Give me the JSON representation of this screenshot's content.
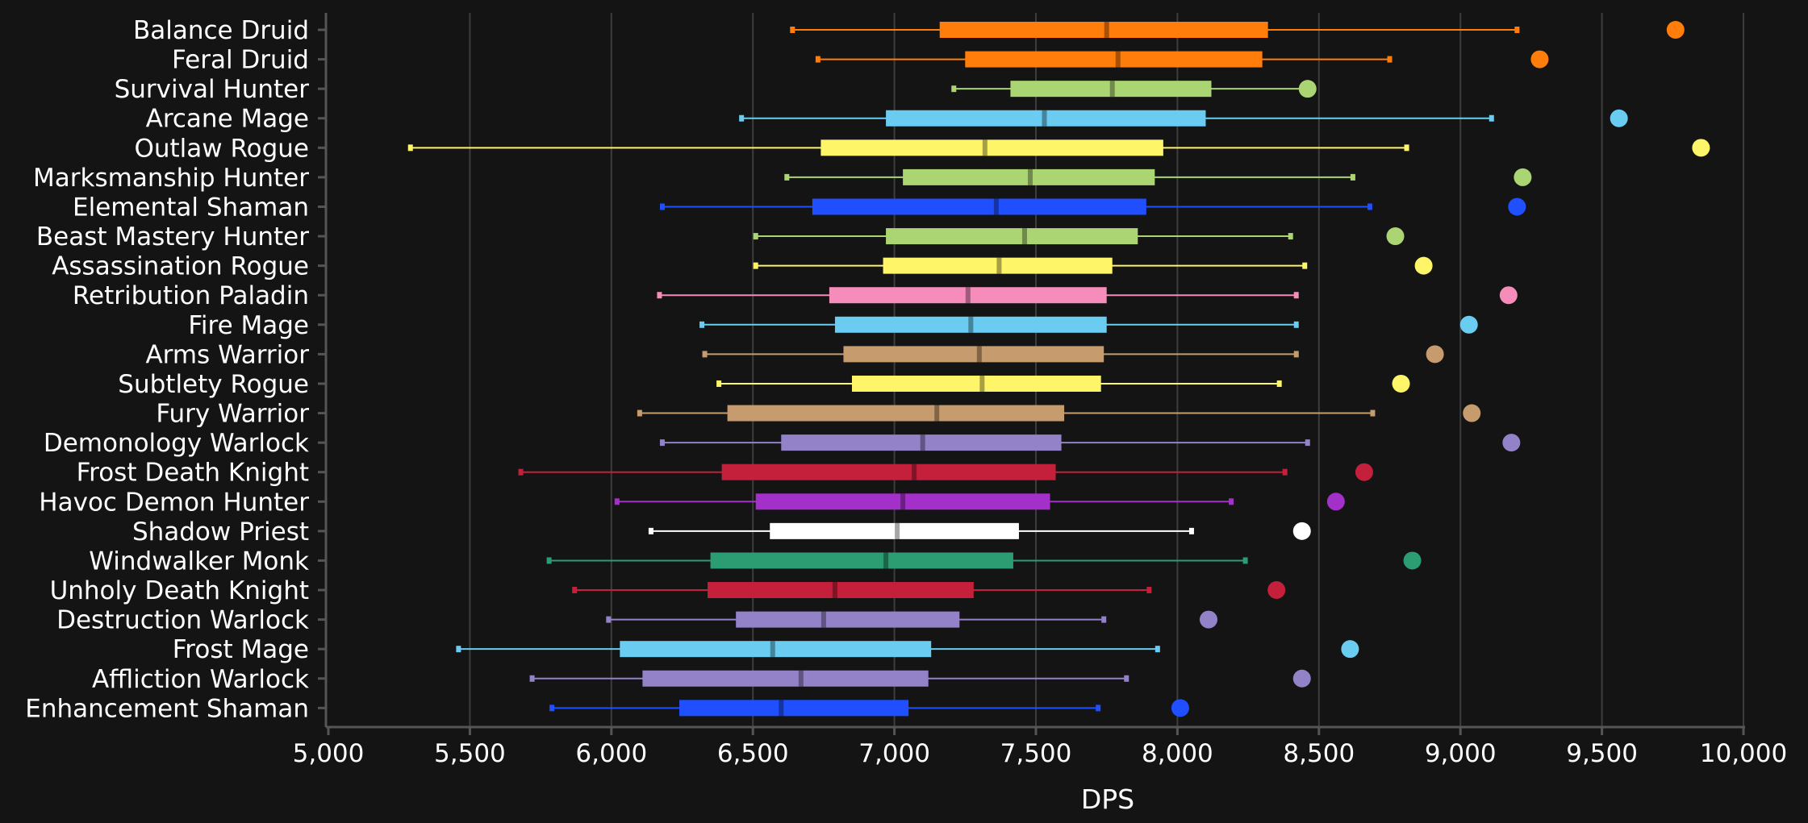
{
  "chart_data": {
    "type": "box",
    "xlabel": "DPS",
    "xlim": [
      5000,
      10000
    ],
    "xticks": [
      5000,
      5500,
      6000,
      6500,
      7000,
      7500,
      8000,
      8500,
      9000,
      9500,
      10000
    ],
    "xtick_labels": [
      "5,000",
      "5,500",
      "6,000",
      "6,500",
      "7,000",
      "7,500",
      "8,000",
      "8,500",
      "9,000",
      "9,500",
      "10,000"
    ],
    "grid": "vertical",
    "series": [
      {
        "name": "Balance Druid",
        "color": "#ff7d0a",
        "min": 6640,
        "q1": 7160,
        "median": 7750,
        "q3": 8320,
        "max": 9200,
        "outlier": 9760
      },
      {
        "name": "Feral Druid",
        "color": "#ff7d0a",
        "min": 6730,
        "q1": 7250,
        "median": 7790,
        "q3": 8300,
        "max": 8750,
        "outlier": 9280
      },
      {
        "name": "Survival Hunter",
        "color": "#abd473",
        "min": 7210,
        "q1": 7410,
        "median": 7770,
        "q3": 8120,
        "max": null,
        "outlier": 8460
      },
      {
        "name": "Arcane Mage",
        "color": "#69ccf0",
        "min": 6460,
        "q1": 6970,
        "median": 7530,
        "q3": 8100,
        "max": 9110,
        "outlier": 9560
      },
      {
        "name": "Outlaw Rogue",
        "color": "#fff569",
        "min": 5290,
        "q1": 6740,
        "median": 7320,
        "q3": 7950,
        "max": 8810,
        "outlier": 9850
      },
      {
        "name": "Marksmanship Hunter",
        "color": "#abd473",
        "min": 6620,
        "q1": 7030,
        "median": 7480,
        "q3": 7920,
        "max": 8620,
        "outlier": 9220
      },
      {
        "name": "Elemental Shaman",
        "color": "#1f4fff",
        "min": 6180,
        "q1": 6710,
        "median": 7360,
        "q3": 7890,
        "max": 8680,
        "outlier": 9200
      },
      {
        "name": "Beast Mastery Hunter",
        "color": "#abd473",
        "min": 6510,
        "q1": 6970,
        "median": 7460,
        "q3": 7860,
        "max": 8400,
        "outlier": 8770
      },
      {
        "name": "Assassination Rogue",
        "color": "#fff569",
        "min": 6510,
        "q1": 6960,
        "median": 7370,
        "q3": 7770,
        "max": 8450,
        "outlier": 8870
      },
      {
        "name": "Retribution Paladin",
        "color": "#f58cba",
        "min": 6170,
        "q1": 6770,
        "median": 7260,
        "q3": 7750,
        "max": 8420,
        "outlier": 9170
      },
      {
        "name": "Fire Mage",
        "color": "#69ccf0",
        "min": 6320,
        "q1": 6790,
        "median": 7270,
        "q3": 7750,
        "max": 8420,
        "outlier": 9030
      },
      {
        "name": "Arms Warrior",
        "color": "#c69b6d",
        "min": 6330,
        "q1": 6820,
        "median": 7300,
        "q3": 7740,
        "max": 8420,
        "outlier": 8910
      },
      {
        "name": "Subtlety Rogue",
        "color": "#fff569",
        "min": 6380,
        "q1": 6850,
        "median": 7310,
        "q3": 7730,
        "max": 8360,
        "outlier": 8790
      },
      {
        "name": "Fury Warrior",
        "color": "#c69b6d",
        "min": 6100,
        "q1": 6410,
        "median": 7150,
        "q3": 7600,
        "max": 8690,
        "outlier": 9040
      },
      {
        "name": "Demonology Warlock",
        "color": "#9482c9",
        "min": 6180,
        "q1": 6600,
        "median": 7100,
        "q3": 7590,
        "max": 8460,
        "outlier": 9180
      },
      {
        "name": "Frost Death Knight",
        "color": "#c41f3b",
        "min": 5680,
        "q1": 6390,
        "median": 7070,
        "q3": 7570,
        "max": 8380,
        "outlier": 8660
      },
      {
        "name": "Havoc Demon Hunter",
        "color": "#a330c9",
        "min": 6020,
        "q1": 6510,
        "median": 7030,
        "q3": 7550,
        "max": 8190,
        "outlier": 8560
      },
      {
        "name": "Shadow Priest",
        "color": "#ffffff",
        "min": 6140,
        "q1": 6560,
        "median": 7010,
        "q3": 7440,
        "max": 8050,
        "outlier": 8440
      },
      {
        "name": "Windwalker Monk",
        "color": "#2c9c73",
        "min": 5780,
        "q1": 6350,
        "median": 6970,
        "q3": 7420,
        "max": 8240,
        "outlier": 8830
      },
      {
        "name": "Unholy Death Knight",
        "color": "#c41f3b",
        "min": 5870,
        "q1": 6340,
        "median": 6790,
        "q3": 7280,
        "max": 7900,
        "outlier": 8350
      },
      {
        "name": "Destruction Warlock",
        "color": "#9482c9",
        "min": 5990,
        "q1": 6440,
        "median": 6750,
        "q3": 7230,
        "max": 7740,
        "outlier": 8110
      },
      {
        "name": "Frost Mage",
        "color": "#69ccf0",
        "min": 5460,
        "q1": 6030,
        "median": 6570,
        "q3": 7130,
        "max": 7930,
        "outlier": 8610
      },
      {
        "name": "Affliction Warlock",
        "color": "#9482c9",
        "min": 5720,
        "q1": 6110,
        "median": 6670,
        "q3": 7120,
        "max": 7820,
        "outlier": 8440
      },
      {
        "name": "Enhancement Shaman",
        "color": "#1f4fff",
        "min": 5790,
        "q1": 6240,
        "median": 6600,
        "q3": 7050,
        "max": 7720,
        "outlier": 8010
      }
    ]
  }
}
